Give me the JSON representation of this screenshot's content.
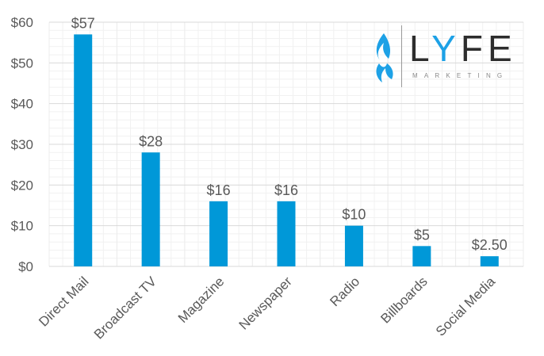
{
  "chart_data": {
    "type": "bar",
    "categories": [
      "Direct Mail",
      "Broadcast TV",
      "Magazine",
      "Newspaper",
      "Radio",
      "Billboards",
      "Social Media"
    ],
    "values": [
      57,
      28,
      16,
      16,
      10,
      5,
      2.5
    ],
    "data_labels": [
      "$57",
      "$28",
      "$16",
      "$16",
      "$10",
      "$5",
      "$2.50"
    ],
    "yticks": [
      "$0",
      "$10",
      "$20",
      "$30",
      "$40",
      "$50",
      "$60"
    ],
    "ylim": [
      0,
      60
    ],
    "title": "",
    "xlabel": "",
    "ylabel": "",
    "grid": true,
    "bar_color": "#0098d8"
  },
  "logo": {
    "word_pre": "L",
    "word_accent": "Y",
    "word_post": "FE",
    "subtitle": "MARKETING",
    "brand_color": "#1da1e6"
  }
}
